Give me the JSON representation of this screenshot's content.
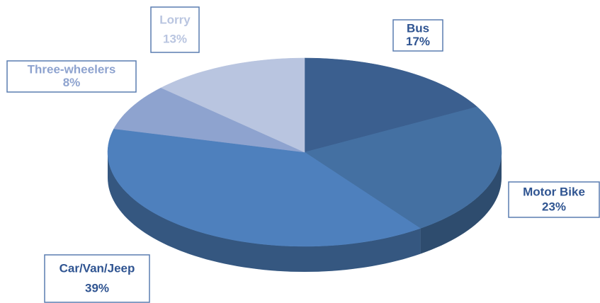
{
  "chart_data": {
    "type": "pie",
    "categories": [
      "Bus",
      "Motor Bike",
      "Car/Van/Jeep",
      "Three-wheelers",
      "Lorry"
    ],
    "values": [
      17,
      23,
      39,
      8,
      13
    ],
    "value_labels": [
      "17%",
      "23%",
      "39%",
      "8%",
      "13%"
    ],
    "colors": [
      "#3b5f8f",
      "#4470a2",
      "#4e80bd",
      "#8ea3cf",
      "#b9c5e0"
    ],
    "three_d": true
  }
}
